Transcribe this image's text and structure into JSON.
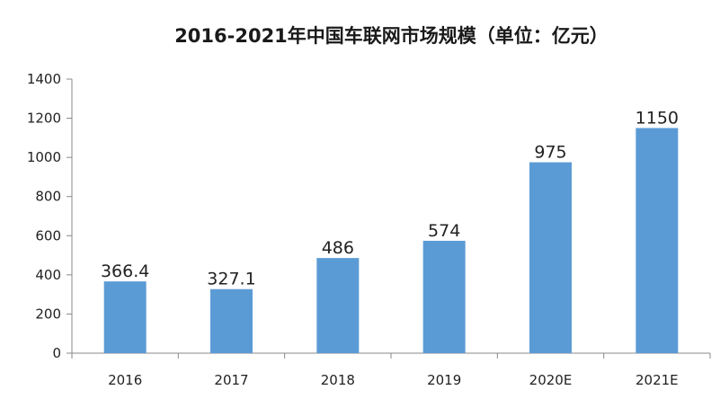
{
  "chart_data": {
    "type": "bar",
    "title": "2016-2021年中国车联网市场规模（单位：亿元）",
    "categories": [
      "2016",
      "2017",
      "2018",
      "2019",
      "2020E",
      "2021E"
    ],
    "values": [
      366.4,
      327.1,
      486,
      574,
      975,
      1150
    ],
    "value_labels": [
      "366.4",
      "327.1",
      "486",
      "574",
      "975",
      "1150"
    ],
    "ylim": [
      0,
      1400
    ],
    "yticks": [
      0,
      200,
      400,
      600,
      800,
      1000,
      1200,
      1400
    ],
    "xlabel": "",
    "ylabel": "",
    "grid": false,
    "bar_color": "#5b9bd5",
    "axis_color": "#888888"
  }
}
